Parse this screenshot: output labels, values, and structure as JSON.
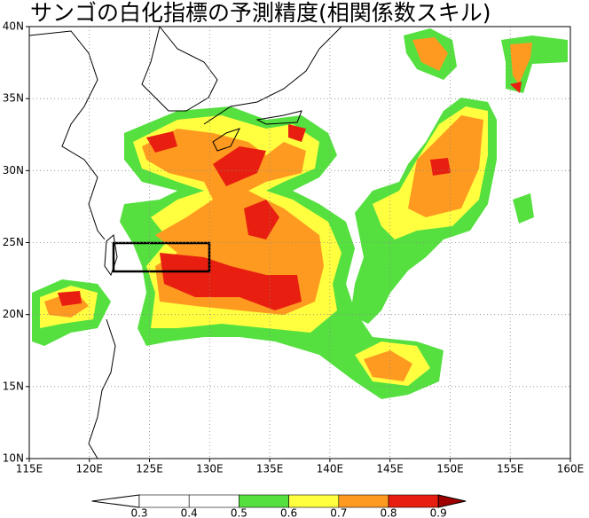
{
  "title": "サンゴの白化指標の予測精度(相関係数スキル)",
  "map": {
    "lon_labels": [
      "115E",
      "120E",
      "125E",
      "130E",
      "135E",
      "140E",
      "145E",
      "150E",
      "155E",
      "160E"
    ],
    "lat_labels": [
      "10N",
      "15N",
      "20N",
      "25N",
      "30N",
      "35N",
      "40N"
    ]
  },
  "colorbar": {
    "levels": [
      0.3,
      0.4,
      0.5,
      0.6,
      0.7,
      0.8,
      0.9
    ],
    "colors": [
      "#ffffff",
      "#ffffff",
      "#ffffff",
      "#55e040",
      "#ffff40",
      "#ff9a20",
      "#e81e10",
      "#a00000"
    ]
  }
}
